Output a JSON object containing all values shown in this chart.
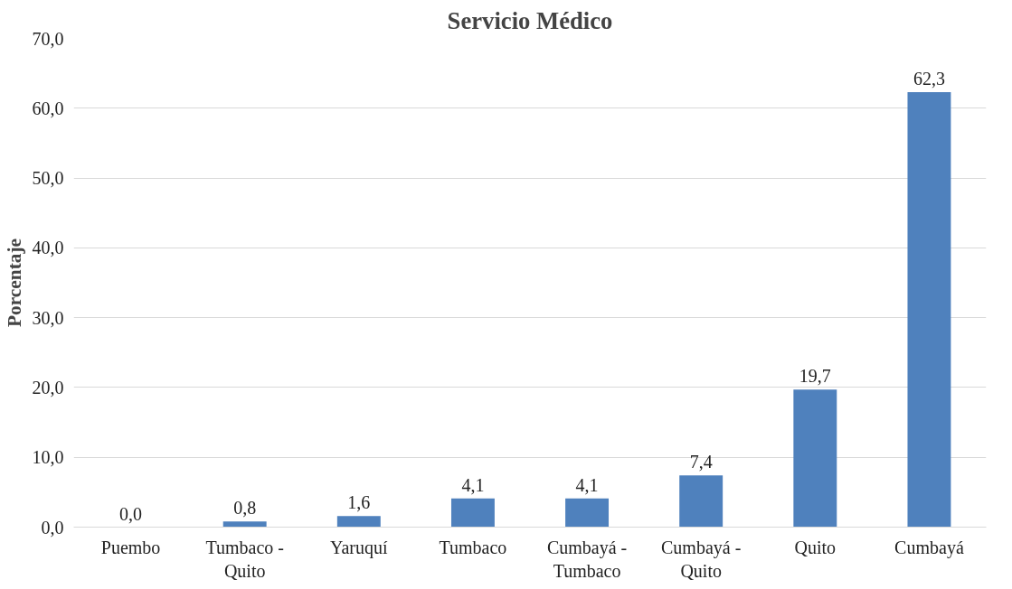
{
  "chart_data": {
    "type": "bar",
    "title": "Servicio Médico",
    "ylabel": "Porcentaje",
    "categories": [
      "Puembo",
      "Tumbaco - Quito",
      "Yaruquí",
      "Tumbaco",
      "Cumbayá - Tumbaco",
      "Cumbayá - Quito",
      "Quito",
      "Cumbayá"
    ],
    "values": [
      0.0,
      0.8,
      1.6,
      4.1,
      4.1,
      7.4,
      19.7,
      62.3
    ],
    "value_labels": [
      "0,0",
      "0,8",
      "1,6",
      "4,1",
      "4,1",
      "7,4",
      "19,7",
      "62,3"
    ],
    "color": "#4f81bd",
    "ylim": [
      0,
      70
    ],
    "yticks": [
      {
        "value": 0,
        "label": "0,0"
      },
      {
        "value": 10,
        "label": "10,0"
      },
      {
        "value": 20,
        "label": "20,0"
      },
      {
        "value": 30,
        "label": "30,0"
      },
      {
        "value": 40,
        "label": "40,0"
      },
      {
        "value": 50,
        "label": "50,0"
      },
      {
        "value": 60,
        "label": "60,0"
      },
      {
        "value": 70,
        "label": "70,0"
      }
    ],
    "grid": "y"
  }
}
